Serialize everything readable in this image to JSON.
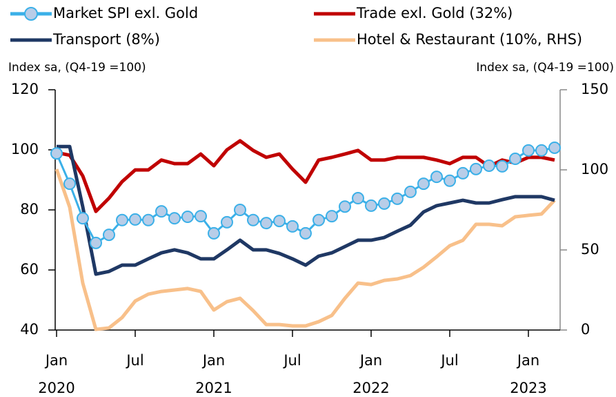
{
  "chart_data": {
    "type": "line",
    "y_axis_label": "Index sa, (Q4-19 =100)",
    "y2_axis_label": "Index sa, (Q4-19 =100)",
    "categories": [
      "Jan",
      null,
      null,
      null,
      null,
      null,
      "Jul",
      null,
      null,
      null,
      null,
      null,
      "Jan",
      null,
      null,
      null,
      null,
      null,
      "Jul",
      null,
      null,
      null,
      null,
      null,
      "Jan",
      null,
      null,
      null,
      null,
      null,
      "Jul",
      null,
      null,
      null,
      null,
      null,
      "Jan",
      null,
      null
    ],
    "year_labels": [
      "2020",
      "2021",
      "2022",
      "2023"
    ],
    "ylim": [
      40,
      120
    ],
    "yticks": [
      40,
      60,
      80,
      100,
      120
    ],
    "y2lim": [
      0,
      150
    ],
    "y2ticks": [
      0,
      50,
      100,
      150
    ],
    "series": [
      {
        "name": "Market SPI exl. Gold",
        "color": "#3bb0e8",
        "marker": "circle",
        "values": [
          98.8,
          88.7,
          77.2,
          69,
          71.7,
          76.6,
          76.8,
          76.6,
          79.5,
          77.2,
          77.7,
          77.9,
          72.2,
          75.9,
          80,
          76.6,
          75.6,
          76.3,
          74.5,
          72.2,
          76.6,
          77.9,
          81.1,
          83.9,
          81.4,
          82.1,
          83.7,
          86,
          88.7,
          91,
          89.7,
          92.2,
          93.6,
          94.7,
          94.5,
          97,
          99.8,
          99.8,
          100.7
        ]
      },
      {
        "name": "Trade exl. Gold (32%)",
        "color": "#c00000",
        "values": [
          99.1,
          98.2,
          91.3,
          79.5,
          83.9,
          89.4,
          93.3,
          93.3,
          96.6,
          95.4,
          95.4,
          98.6,
          94.7,
          100,
          103,
          99.8,
          97.5,
          98.6,
          93.6,
          89.2,
          96.6,
          97.5,
          98.6,
          99.8,
          96.6,
          96.6,
          97.5,
          97.5,
          97.5,
          96.6,
          95.4,
          97.5,
          97.5,
          94.5,
          96.6,
          95.6,
          97.5,
          97.5,
          96.6
        ]
      },
      {
        "name": "Transport (8%)",
        "color": "#1f3864",
        "values": [
          101.1,
          101.1,
          81,
          58.6,
          59.5,
          61.6,
          61.6,
          63.7,
          65.7,
          66.7,
          65.7,
          63.7,
          63.7,
          66.7,
          69.9,
          66.7,
          66.7,
          65.5,
          63.7,
          61.6,
          64.6,
          65.7,
          67.8,
          69.9,
          69.9,
          70.8,
          72.9,
          74.9,
          79.3,
          81.4,
          82.3,
          83.2,
          82.3,
          82.3,
          83.4,
          84.4,
          84.4,
          84.4,
          83.2
        ]
      },
      {
        "name": "Hotel & Restaurant (10%, RHS)",
        "color": "#f8c08a",
        "axis": "y2",
        "values": [
          100.4,
          76.7,
          29.3,
          0.4,
          1.3,
          7.8,
          18.1,
          22.4,
          24.1,
          25,
          25.9,
          24.1,
          12.5,
          17.7,
          19.8,
          12.1,
          3.4,
          3.4,
          2.6,
          2.6,
          5.2,
          9.1,
          19.8,
          29.3,
          28.4,
          31,
          31.9,
          34,
          39.2,
          45.7,
          52.6,
          56,
          66,
          66,
          65.1,
          70.7,
          71.6,
          72.4,
          81
        ]
      }
    ]
  }
}
